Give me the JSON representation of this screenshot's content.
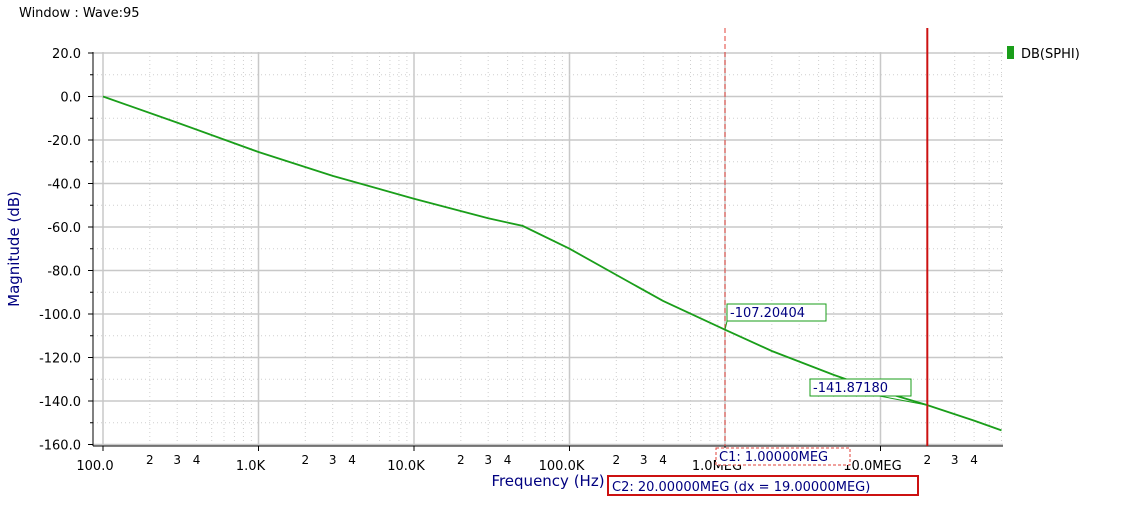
{
  "window_title": "Window : Wave:95",
  "colors": {
    "trace": "#1a9e1a",
    "grid": "#c8c8c8",
    "grid_minor": "#cfcfcf",
    "cursor1": "#e0403a",
    "cursor2": "#cc1111",
    "label_text": "#000080"
  },
  "chart_data": {
    "type": "line",
    "xlabel": "Frequency (Hz)",
    "ylabel": "Magnitude (dB)",
    "x_scale": "log",
    "xlim": [
      100,
      60000000
    ],
    "ylim": [
      -162,
      22
    ],
    "x_ticks": [
      {
        "value": 100,
        "label": "100.0"
      },
      {
        "value": 1000,
        "label": "1.0K"
      },
      {
        "value": 10000,
        "label": "10.0K"
      },
      {
        "value": 100000,
        "label": "100.0K"
      },
      {
        "value": 1000000,
        "label": "1.0MEG"
      },
      {
        "value": 10000000,
        "label": "10.0MEG"
      }
    ],
    "x_minor_labels": [
      "2",
      "3",
      "4"
    ],
    "y_ticks": [
      {
        "value": 20,
        "label": "20.0"
      },
      {
        "value": 0,
        "label": "0.0"
      },
      {
        "value": -20,
        "label": "-20.0"
      },
      {
        "value": -40,
        "label": "-40.0"
      },
      {
        "value": -60,
        "label": "-60.0"
      },
      {
        "value": -80,
        "label": "-80.0"
      },
      {
        "value": -100,
        "label": "-100.0"
      },
      {
        "value": -120,
        "label": "-120.0"
      },
      {
        "value": -140,
        "label": "-140.0"
      },
      {
        "value": -160,
        "label": "-160.0"
      }
    ],
    "grid": true,
    "legend_position": "top-right",
    "series": [
      {
        "name": "DB(SPHI)",
        "x": [
          100,
          300,
          1000,
          3000,
          10000,
          30000,
          50000,
          100000,
          200000,
          400000,
          1000000,
          2000000,
          5000000,
          10000000,
          20000000,
          40000000,
          60000000
        ],
        "y": [
          0,
          -12,
          -25.5,
          -36.5,
          -47,
          -56,
          -59.5,
          -70,
          -82,
          -94,
          -107.2,
          -117,
          -128,
          -135.5,
          -141.9,
          -149,
          -153.5
        ]
      }
    ],
    "cursors": [
      {
        "name": "C1",
        "x": 1000000,
        "value_label": "-107.20404",
        "readout": "C1: 1.00000MEG",
        "style": "dashed"
      },
      {
        "name": "C2",
        "x": 20000000,
        "value_label": "-141.87180",
        "readout": "C2: 20.00000MEG (dx = 19.00000MEG)",
        "style": "solid"
      }
    ]
  }
}
